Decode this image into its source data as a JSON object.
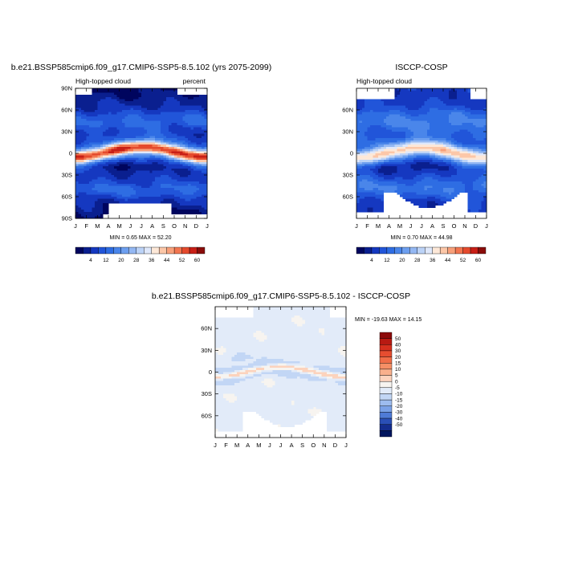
{
  "chart_data": [
    {
      "type": "heatmap",
      "title": "b.e21.BSSP585cmip6.f09_g17.CMIP6-SSP5-8.5.102 (yrs 2075-2099)",
      "left_label": "High-topped cloud",
      "right_label": "percent",
      "x_ticks": [
        "J",
        "F",
        "M",
        "A",
        "M",
        "J",
        "J",
        "A",
        "S",
        "O",
        "N",
        "D",
        "J"
      ],
      "y_ticks": [
        "90N",
        "60N",
        "30N",
        "0",
        "30S",
        "60S",
        "90S"
      ],
      "stats": "MIN =   0.65 MAX =  52.20",
      "colorbar_labels": [
        "4",
        "12",
        "20",
        "28",
        "36",
        "44",
        "52",
        "60"
      ],
      "colorbar_colors": [
        "#00055e",
        "#0a1f8f",
        "#1538c0",
        "#2155d9",
        "#2e6de3",
        "#4a86ea",
        "#6d9fef",
        "#94b8f3",
        "#bcd3f7",
        "#dfe8fb",
        "#fde8d8",
        "#fcc7a8",
        "#f8a07a",
        "#f27650",
        "#e54a2d",
        "#c81f16",
        "#8a0c0a"
      ],
      "rule": "clima",
      "lat_range": [
        -90,
        90
      ],
      "mask": "full",
      "noise_seed": 3
    },
    {
      "type": "heatmap",
      "title": "ISCCP-COSP",
      "left_label": "High-topped cloud",
      "right_label": "",
      "x_ticks": [
        "J",
        "F",
        "M",
        "A",
        "M",
        "J",
        "J",
        "A",
        "S",
        "O",
        "N",
        "D",
        "J"
      ],
      "y_ticks": [
        "60N",
        "30N",
        "0",
        "30S",
        "60S"
      ],
      "stats": "MIN =   0.70 MAX =  44.98",
      "colorbar_labels": [
        "4",
        "12",
        "20",
        "28",
        "36",
        "44",
        "52",
        "60"
      ],
      "colorbar_colors": [
        "#00055e",
        "#0a1f8f",
        "#1538c0",
        "#2155d9",
        "#2e6de3",
        "#4a86ea",
        "#6d9fef",
        "#94b8f3",
        "#bcd3f7",
        "#dfe8fb",
        "#fde8d8",
        "#fcc7a8",
        "#f8a07a",
        "#f27650",
        "#e54a2d",
        "#c81f16",
        "#8a0c0a"
      ],
      "rule": "obs",
      "lat_range": [
        -90,
        90
      ],
      "mask": "polar",
      "noise_seed": 11
    },
    {
      "type": "heatmap",
      "title": "b.e21.BSSP585cmip6.f09_g17.CMIP6-SSP5-8.5.102 - ISCCP-COSP",
      "left_label": "",
      "right_label": "",
      "x_ticks": [
        "J",
        "F",
        "M",
        "A",
        "M",
        "J",
        "J",
        "A",
        "S",
        "O",
        "N",
        "D",
        "J"
      ],
      "y_ticks": [
        "60N",
        "30N",
        "0",
        "30S",
        "60S"
      ],
      "stats": "MIN = -19.63 MAX =  14.15",
      "colorbar_labels": [
        "50",
        "40",
        "30",
        "20",
        "15",
        "10",
        "5",
        "0",
        "-5",
        "-10",
        "-15",
        "-20",
        "-30",
        "-40",
        "-50"
      ],
      "colorbar_colors": [
        "#8c0a0a",
        "#b81a12",
        "#d6301e",
        "#e64d30",
        "#f06d48",
        "#f58f66",
        "#f9b08c",
        "#fcd3bd",
        "#f7f4f0",
        "#e2ebf9",
        "#c2d6f5",
        "#9dbcef",
        "#7aa1e7",
        "#4f7bd6",
        "#2a4fb6",
        "#142d8e",
        "#00155e"
      ],
      "rule": "diff",
      "lat_range": [
        -90,
        90
      ],
      "mask": "polar",
      "noise_seed": 23
    }
  ]
}
